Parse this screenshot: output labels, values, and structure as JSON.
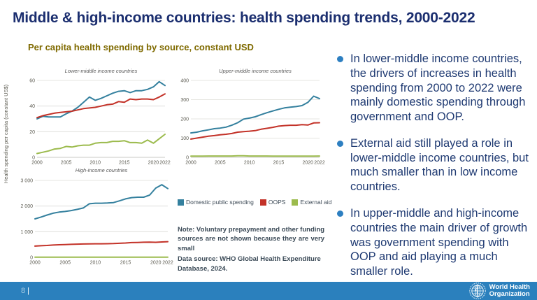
{
  "slide": {
    "title": "Middle & high-income countries: health spending trends, 2000-2022",
    "subtitle": "Per capita health spending by source, constant USD",
    "page_number": "8",
    "page_separator": "|",
    "who_logo": {
      "line1": "World Health",
      "line2": "Organization"
    }
  },
  "colors": {
    "title": "#1b2e6f",
    "subtitle": "#7f6a00",
    "bullet_text": "#1f3a72",
    "bullet_dot": "#2d7fc1",
    "footer_bar": "#2b80bd",
    "domestic_public_spending": "#34809e",
    "oops": "#c33228",
    "external_aid": "#9cbb4d",
    "axis_text": "#5d5c52",
    "gridline": "#dcdcd6"
  },
  "figure": {
    "y_axis_label": "Health spending per capita (constant US$)",
    "legend": [
      {
        "label": "Domestic public spending",
        "color": "#34809e"
      },
      {
        "label": "OOPS",
        "color": "#c33228"
      },
      {
        "label": "External aid",
        "color": "#9cbb4d"
      }
    ],
    "note_line1": "Note: Voluntary prepayment and other funding sources are not shown because they are very small",
    "note_line2": "Data source: WHO Global Health Expenditure Database, 2024."
  },
  "bullets": [
    {
      "text": "In lower-middle income countries, the drivers of increases in health spending from 2000 to 2022 were mainly domestic spending through government and OOP."
    },
    {
      "text": "External aid still played a role in lower-middle income countries, but much smaller than in low income countries."
    },
    {
      "text": "In upper-middle and high-income countries the main driver of growth was government spending with OOP and aid playing a much smaller role."
    }
  ],
  "chart_data": [
    {
      "type": "line",
      "title": "Lower-middle income countries",
      "x": [
        2000,
        2001,
        2002,
        2003,
        2004,
        2005,
        2006,
        2007,
        2008,
        2009,
        2010,
        2011,
        2012,
        2013,
        2014,
        2015,
        2016,
        2017,
        2018,
        2019,
        2020,
        2021,
        2022
      ],
      "xlim": [
        2000,
        2022
      ],
      "xticks": [
        2000,
        2005,
        2010,
        2015,
        2020,
        2022
      ],
      "ylim": [
        0,
        60
      ],
      "yticks": [
        0,
        20,
        40,
        60
      ],
      "ytick_labels": [
        "0",
        "20",
        "40",
        "60"
      ],
      "grid": true,
      "series": [
        {
          "name": "Domestic public spending",
          "color": "#34809e",
          "values": [
            30,
            32,
            31.5,
            31.5,
            31.5,
            34,
            36,
            39,
            43,
            47,
            44.5,
            46,
            48,
            50,
            51.5,
            52,
            50.5,
            52,
            52,
            53,
            55,
            59,
            56
          ]
        },
        {
          "name": "OOPS",
          "color": "#c33228",
          "values": [
            31,
            32.5,
            33.5,
            34.5,
            35,
            35.5,
            36,
            37,
            38,
            38.5,
            39,
            40,
            41,
            41.5,
            43.5,
            43,
            45.5,
            45,
            45.5,
            45.5,
            45,
            47,
            49.5
          ]
        },
        {
          "name": "External aid",
          "color": "#9cbb4d",
          "values": [
            3,
            4,
            5,
            6.5,
            7,
            8.5,
            8,
            9,
            9.5,
            9.5,
            11,
            11.5,
            11.5,
            12.5,
            12.5,
            13,
            11.5,
            11.5,
            11,
            13.5,
            11,
            14.5,
            18
          ]
        }
      ]
    },
    {
      "type": "line",
      "title": "Upper-middle income countries",
      "x": [
        2000,
        2001,
        2002,
        2003,
        2004,
        2005,
        2006,
        2007,
        2008,
        2009,
        2010,
        2011,
        2012,
        2013,
        2014,
        2015,
        2016,
        2017,
        2018,
        2019,
        2020,
        2021,
        2022
      ],
      "xlim": [
        2000,
        2022
      ],
      "xticks": [
        2000,
        2005,
        2010,
        2015,
        2020,
        2022
      ],
      "ylim": [
        0,
        400
      ],
      "yticks": [
        0,
        100,
        200,
        300,
        400
      ],
      "ytick_labels": [
        "0",
        "100",
        "200",
        "300",
        "400"
      ],
      "grid": true,
      "series": [
        {
          "name": "Domestic public spending",
          "color": "#34809e",
          "values": [
            127,
            131,
            138,
            143,
            149,
            152,
            157,
            167,
            180,
            199,
            204,
            211,
            222,
            232,
            241,
            250,
            257,
            261,
            264,
            269,
            286,
            318,
            305
          ]
        },
        {
          "name": "OOPS",
          "color": "#c33228",
          "values": [
            95,
            100,
            105,
            110,
            113,
            117,
            120,
            124,
            131,
            134,
            136,
            139,
            146,
            151,
            156,
            162,
            165,
            167,
            167,
            170,
            168,
            179,
            180
          ]
        },
        {
          "name": "External aid",
          "color": "#9cbb4d",
          "values": [
            6,
            6,
            6,
            7,
            7,
            7,
            7,
            7,
            8,
            8,
            7,
            7,
            7,
            7,
            6,
            6,
            6,
            6,
            6,
            6,
            6,
            6,
            7
          ]
        }
      ]
    },
    {
      "type": "line",
      "title": "High-income countries",
      "x": [
        2000,
        2001,
        2002,
        2003,
        2004,
        2005,
        2006,
        2007,
        2008,
        2009,
        2010,
        2011,
        2012,
        2013,
        2014,
        2015,
        2016,
        2017,
        2018,
        2019,
        2020,
        2021,
        2022
      ],
      "xlim": [
        2000,
        2022
      ],
      "xticks": [
        2000,
        2005,
        2010,
        2015,
        2020,
        2022
      ],
      "ylim": [
        0,
        3000
      ],
      "yticks": [
        0,
        1000,
        2000,
        3000
      ],
      "ytick_labels": [
        "0",
        "1 000",
        "2 000",
        "3 000"
      ],
      "grid": true,
      "series": [
        {
          "name": "Domestic public spending",
          "color": "#34809e",
          "values": [
            1500,
            1570,
            1650,
            1720,
            1765,
            1790,
            1825,
            1870,
            1925,
            2090,
            2110,
            2110,
            2120,
            2135,
            2205,
            2280,
            2330,
            2345,
            2345,
            2430,
            2700,
            2835,
            2680
          ]
        },
        {
          "name": "OOPS",
          "color": "#c33228",
          "values": [
            440,
            452,
            465,
            480,
            490,
            500,
            507,
            515,
            522,
            527,
            530,
            530,
            532,
            537,
            547,
            560,
            575,
            582,
            590,
            595,
            587,
            600,
            612
          ]
        },
        {
          "name": "External aid",
          "color": "#9cbb4d",
          "values": [
            8,
            8,
            8,
            8,
            8,
            8,
            8,
            8,
            9,
            9,
            9,
            8,
            8,
            8,
            8,
            8,
            8,
            8,
            8,
            8,
            8,
            8,
            8
          ]
        }
      ]
    }
  ]
}
